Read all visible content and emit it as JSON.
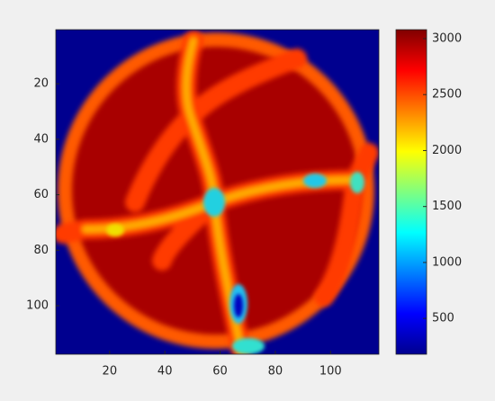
{
  "chart_data": {
    "type": "heatmap",
    "xlim": [
      0.5,
      117.5
    ],
    "ylim": [
      0.5,
      117.5
    ],
    "xticks": [
      20,
      40,
      60,
      80,
      100
    ],
    "yticks": [
      20,
      40,
      60,
      80,
      100
    ],
    "y_reversed": true,
    "colormap": "jet",
    "clim": [
      180,
      3080
    ],
    "colorbar_ticks": [
      500,
      1000,
      1500,
      2000,
      2500,
      3000
    ]
  }
}
